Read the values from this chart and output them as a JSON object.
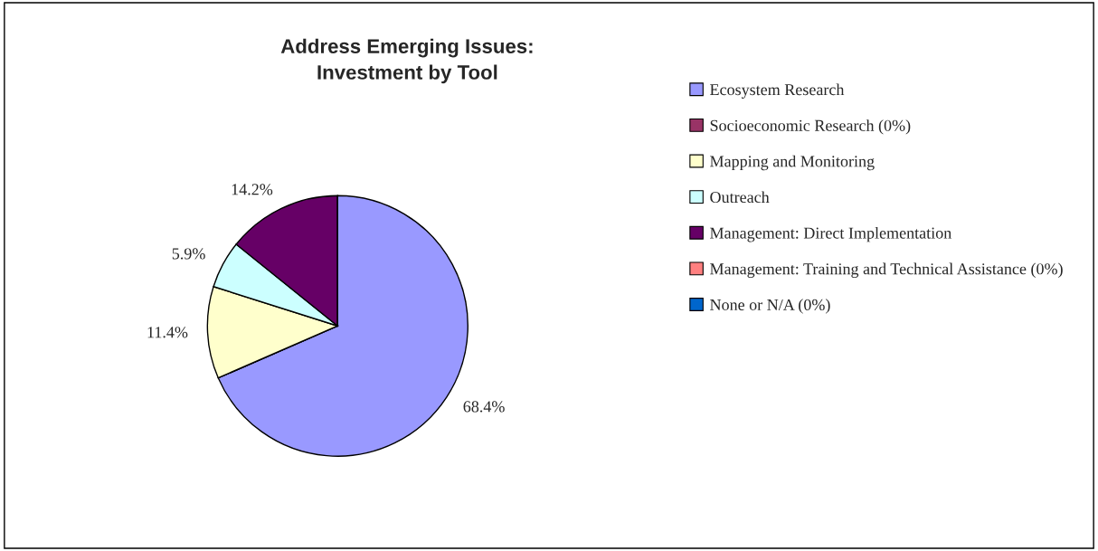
{
  "chart_data": {
    "type": "pie",
    "title": "Address Emerging Issues:\nInvestment by Tool",
    "categories": [
      "Ecosystem Research",
      "Socioeconomic Research (0%)",
      "Mapping and Monitoring",
      "Outreach",
      "Management: Direct Implementation",
      "Management: Training and Technical Assistance (0%)",
      "None or N/A (0%)"
    ],
    "values": [
      68.4,
      0,
      11.4,
      5.9,
      14.2,
      0,
      0
    ],
    "colors": [
      "#9999ff",
      "#993366",
      "#ffffcc",
      "#ccffff",
      "#660066",
      "#ff8080",
      "#0066cc"
    ],
    "value_labels": [
      "68.4%",
      null,
      "11.4%",
      "5.9%",
      "14.2%",
      null,
      null
    ],
    "legend": "right"
  }
}
